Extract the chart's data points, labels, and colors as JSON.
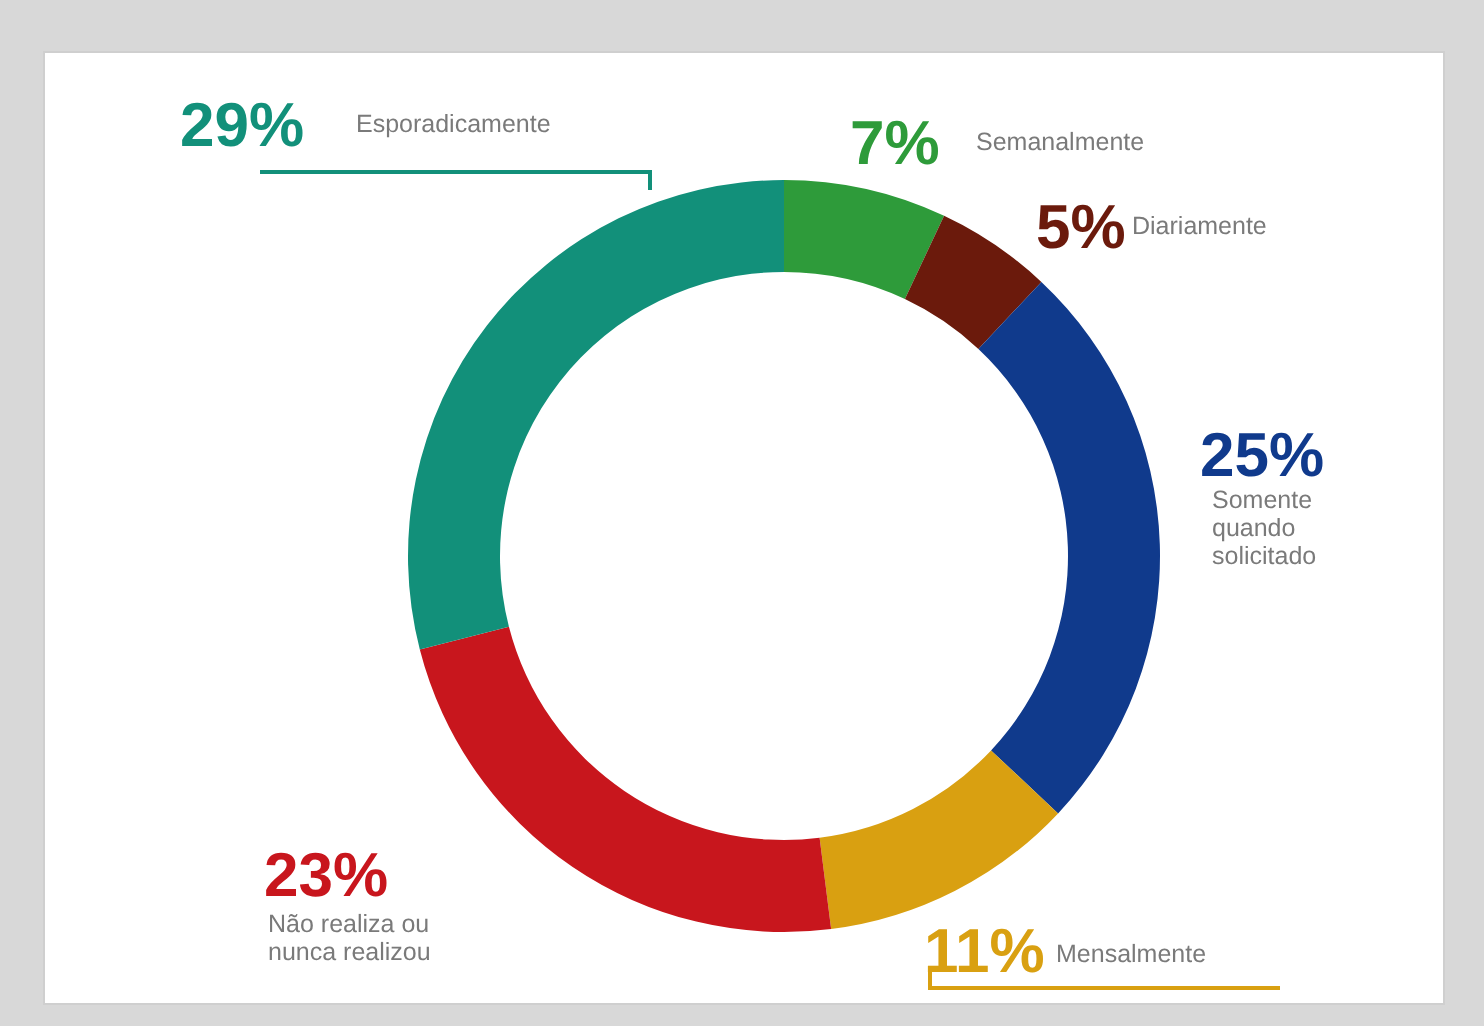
{
  "chart_data": {
    "type": "donut",
    "categories": [
      "Semanalmente",
      "Diariamente",
      "Somente quando solicitado",
      "Mensalmente",
      "Não realiza ou nunca realizou",
      "Esporadicamente"
    ],
    "values": [
      7,
      5,
      25,
      11,
      23,
      29
    ],
    "value_labels": [
      "7%",
      "5%",
      "25%",
      "11%",
      "23%",
      "29%"
    ],
    "colors": [
      "#2e9b3a",
      "#6b1a0c",
      "#103a8c",
      "#d9a011",
      "#c8161d",
      "#12907a"
    ]
  }
}
